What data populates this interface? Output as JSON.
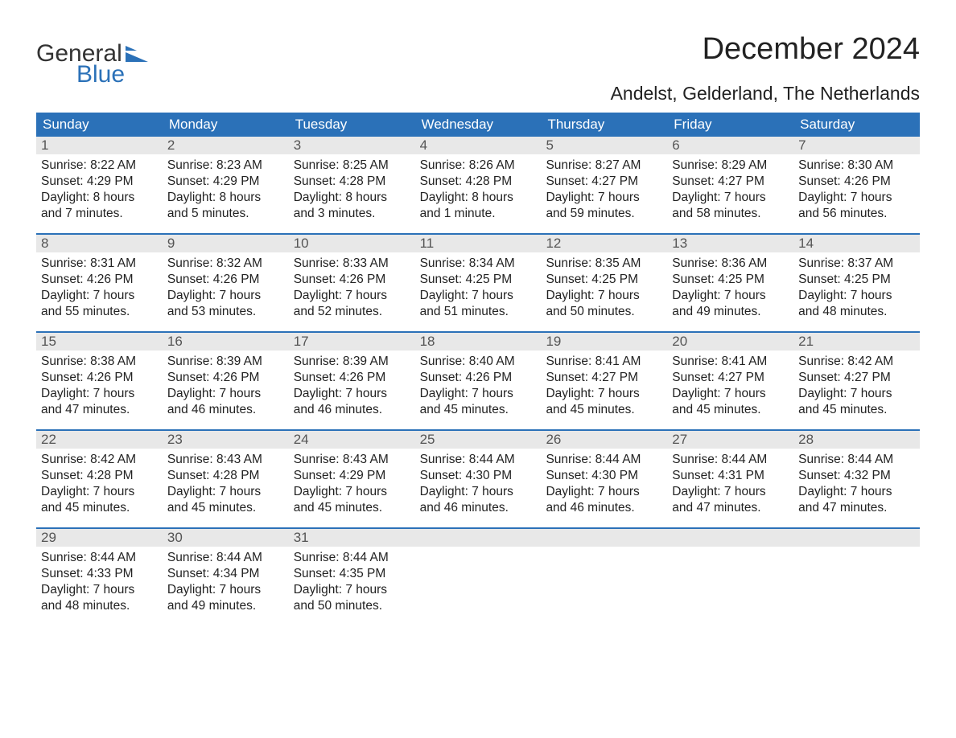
{
  "logo": {
    "text_general": "General",
    "text_blue": "Blue",
    "icon_color": "#2b71b8",
    "general_color": "#333333",
    "blue_color": "#2b71b8"
  },
  "header": {
    "month_title": "December 2024",
    "location": "Andelst, Gelderland, The Netherlands",
    "title_fontsize": 38,
    "location_fontsize": 23,
    "text_color": "#222222"
  },
  "calendar": {
    "header_bg": "#2b71b8",
    "header_text_color": "#ffffff",
    "week_divider_color": "#2b71b8",
    "day_bar_bg": "#e8e8e8",
    "day_bar_text_color": "#555555",
    "content_text_color": "#222222",
    "background_color": "#ffffff",
    "weekday_fontsize": 17,
    "day_number_fontsize": 17,
    "content_fontsize": 15.5,
    "weekdays": [
      "Sunday",
      "Monday",
      "Tuesday",
      "Wednesday",
      "Thursday",
      "Friday",
      "Saturday"
    ],
    "weeks": [
      [
        {
          "day": "1",
          "sunrise": "Sunrise: 8:22 AM",
          "sunset": "Sunset: 4:29 PM",
          "daylight1": "Daylight: 8 hours",
          "daylight2": "and 7 minutes."
        },
        {
          "day": "2",
          "sunrise": "Sunrise: 8:23 AM",
          "sunset": "Sunset: 4:29 PM",
          "daylight1": "Daylight: 8 hours",
          "daylight2": "and 5 minutes."
        },
        {
          "day": "3",
          "sunrise": "Sunrise: 8:25 AM",
          "sunset": "Sunset: 4:28 PM",
          "daylight1": "Daylight: 8 hours",
          "daylight2": "and 3 minutes."
        },
        {
          "day": "4",
          "sunrise": "Sunrise: 8:26 AM",
          "sunset": "Sunset: 4:28 PM",
          "daylight1": "Daylight: 8 hours",
          "daylight2": "and 1 minute."
        },
        {
          "day": "5",
          "sunrise": "Sunrise: 8:27 AM",
          "sunset": "Sunset: 4:27 PM",
          "daylight1": "Daylight: 7 hours",
          "daylight2": "and 59 minutes."
        },
        {
          "day": "6",
          "sunrise": "Sunrise: 8:29 AM",
          "sunset": "Sunset: 4:27 PM",
          "daylight1": "Daylight: 7 hours",
          "daylight2": "and 58 minutes."
        },
        {
          "day": "7",
          "sunrise": "Sunrise: 8:30 AM",
          "sunset": "Sunset: 4:26 PM",
          "daylight1": "Daylight: 7 hours",
          "daylight2": "and 56 minutes."
        }
      ],
      [
        {
          "day": "8",
          "sunrise": "Sunrise: 8:31 AM",
          "sunset": "Sunset: 4:26 PM",
          "daylight1": "Daylight: 7 hours",
          "daylight2": "and 55 minutes."
        },
        {
          "day": "9",
          "sunrise": "Sunrise: 8:32 AM",
          "sunset": "Sunset: 4:26 PM",
          "daylight1": "Daylight: 7 hours",
          "daylight2": "and 53 minutes."
        },
        {
          "day": "10",
          "sunrise": "Sunrise: 8:33 AM",
          "sunset": "Sunset: 4:26 PM",
          "daylight1": "Daylight: 7 hours",
          "daylight2": "and 52 minutes."
        },
        {
          "day": "11",
          "sunrise": "Sunrise: 8:34 AM",
          "sunset": "Sunset: 4:25 PM",
          "daylight1": "Daylight: 7 hours",
          "daylight2": "and 51 minutes."
        },
        {
          "day": "12",
          "sunrise": "Sunrise: 8:35 AM",
          "sunset": "Sunset: 4:25 PM",
          "daylight1": "Daylight: 7 hours",
          "daylight2": "and 50 minutes."
        },
        {
          "day": "13",
          "sunrise": "Sunrise: 8:36 AM",
          "sunset": "Sunset: 4:25 PM",
          "daylight1": "Daylight: 7 hours",
          "daylight2": "and 49 minutes."
        },
        {
          "day": "14",
          "sunrise": "Sunrise: 8:37 AM",
          "sunset": "Sunset: 4:25 PM",
          "daylight1": "Daylight: 7 hours",
          "daylight2": "and 48 minutes."
        }
      ],
      [
        {
          "day": "15",
          "sunrise": "Sunrise: 8:38 AM",
          "sunset": "Sunset: 4:26 PM",
          "daylight1": "Daylight: 7 hours",
          "daylight2": "and 47 minutes."
        },
        {
          "day": "16",
          "sunrise": "Sunrise: 8:39 AM",
          "sunset": "Sunset: 4:26 PM",
          "daylight1": "Daylight: 7 hours",
          "daylight2": "and 46 minutes."
        },
        {
          "day": "17",
          "sunrise": "Sunrise: 8:39 AM",
          "sunset": "Sunset: 4:26 PM",
          "daylight1": "Daylight: 7 hours",
          "daylight2": "and 46 minutes."
        },
        {
          "day": "18",
          "sunrise": "Sunrise: 8:40 AM",
          "sunset": "Sunset: 4:26 PM",
          "daylight1": "Daylight: 7 hours",
          "daylight2": "and 45 minutes."
        },
        {
          "day": "19",
          "sunrise": "Sunrise: 8:41 AM",
          "sunset": "Sunset: 4:27 PM",
          "daylight1": "Daylight: 7 hours",
          "daylight2": "and 45 minutes."
        },
        {
          "day": "20",
          "sunrise": "Sunrise: 8:41 AM",
          "sunset": "Sunset: 4:27 PM",
          "daylight1": "Daylight: 7 hours",
          "daylight2": "and 45 minutes."
        },
        {
          "day": "21",
          "sunrise": "Sunrise: 8:42 AM",
          "sunset": "Sunset: 4:27 PM",
          "daylight1": "Daylight: 7 hours",
          "daylight2": "and 45 minutes."
        }
      ],
      [
        {
          "day": "22",
          "sunrise": "Sunrise: 8:42 AM",
          "sunset": "Sunset: 4:28 PM",
          "daylight1": "Daylight: 7 hours",
          "daylight2": "and 45 minutes."
        },
        {
          "day": "23",
          "sunrise": "Sunrise: 8:43 AM",
          "sunset": "Sunset: 4:28 PM",
          "daylight1": "Daylight: 7 hours",
          "daylight2": "and 45 minutes."
        },
        {
          "day": "24",
          "sunrise": "Sunrise: 8:43 AM",
          "sunset": "Sunset: 4:29 PM",
          "daylight1": "Daylight: 7 hours",
          "daylight2": "and 45 minutes."
        },
        {
          "day": "25",
          "sunrise": "Sunrise: 8:44 AM",
          "sunset": "Sunset: 4:30 PM",
          "daylight1": "Daylight: 7 hours",
          "daylight2": "and 46 minutes."
        },
        {
          "day": "26",
          "sunrise": "Sunrise: 8:44 AM",
          "sunset": "Sunset: 4:30 PM",
          "daylight1": "Daylight: 7 hours",
          "daylight2": "and 46 minutes."
        },
        {
          "day": "27",
          "sunrise": "Sunrise: 8:44 AM",
          "sunset": "Sunset: 4:31 PM",
          "daylight1": "Daylight: 7 hours",
          "daylight2": "and 47 minutes."
        },
        {
          "day": "28",
          "sunrise": "Sunrise: 8:44 AM",
          "sunset": "Sunset: 4:32 PM",
          "daylight1": "Daylight: 7 hours",
          "daylight2": "and 47 minutes."
        }
      ],
      [
        {
          "day": "29",
          "sunrise": "Sunrise: 8:44 AM",
          "sunset": "Sunset: 4:33 PM",
          "daylight1": "Daylight: 7 hours",
          "daylight2": "and 48 minutes."
        },
        {
          "day": "30",
          "sunrise": "Sunrise: 8:44 AM",
          "sunset": "Sunset: 4:34 PM",
          "daylight1": "Daylight: 7 hours",
          "daylight2": "and 49 minutes."
        },
        {
          "day": "31",
          "sunrise": "Sunrise: 8:44 AM",
          "sunset": "Sunset: 4:35 PM",
          "daylight1": "Daylight: 7 hours",
          "daylight2": "and 50 minutes."
        },
        null,
        null,
        null,
        null
      ]
    ]
  }
}
